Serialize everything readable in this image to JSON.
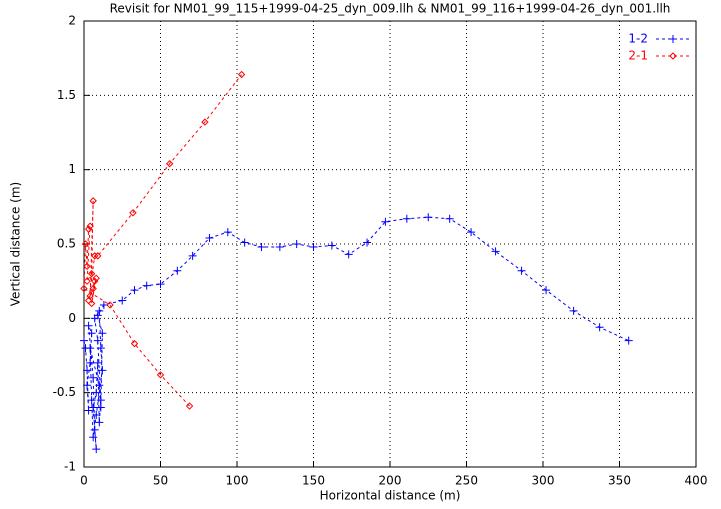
{
  "chart_data": {
    "type": "line",
    "title": "Revisit for NM01_99_115+1999-04-25_dyn_009.llh & NM01_99_116+1999-04-26_dyn_001.llh",
    "x_label": "Horizontal distance (m)",
    "y_label": "Vertical distance (m)",
    "xlim": [
      0,
      400
    ],
    "xticks": [
      0,
      50,
      100,
      150,
      200,
      250,
      300,
      350,
      400
    ],
    "ylim": [
      -1,
      2
    ],
    "yticks": [
      -1,
      -0.5,
      0,
      0.5,
      1,
      1.5,
      2
    ],
    "grid": true,
    "legend": "top-right",
    "series": [
      {
        "name": "1-2",
        "color": "#0000ff",
        "x": [
          0,
          1,
          2,
          3,
          2,
          4,
          5,
          3,
          6,
          7,
          8,
          6,
          8,
          9,
          10,
          11,
          9,
          7,
          10,
          11,
          12,
          8,
          6,
          5,
          4,
          10,
          11,
          12,
          9,
          13,
          25,
          33,
          41,
          50,
          61,
          71,
          82,
          94,
          105,
          116,
          128,
          139,
          150,
          162,
          173,
          185,
          197,
          211,
          225,
          239,
          253,
          269,
          286,
          302,
          320,
          337,
          356
        ],
        "values": [
          -0.15,
          -0.2,
          -0.35,
          -0.62,
          -0.45,
          -0.3,
          -0.1,
          -0.05,
          -0.4,
          -0.75,
          -0.88,
          -0.6,
          -0.5,
          -0.3,
          -0.7,
          -0.55,
          -0.15,
          0,
          0.05,
          -0.2,
          -0.35,
          -0.65,
          -0.8,
          -0.55,
          -0.2,
          -0.45,
          -0.6,
          -0.1,
          0.02,
          0.09,
          0.12,
          0.19,
          0.22,
          0.23,
          0.32,
          0.42,
          0.54,
          0.58,
          0.51,
          0.48,
          0.48,
          0.5,
          0.48,
          0.49,
          0.43,
          0.51,
          0.65,
          0.67,
          0.68,
          0.67,
          0.58,
          0.45,
          0.32,
          0.19,
          0.05,
          -0.06,
          -0.15
        ]
      },
      {
        "name": "2-1",
        "color": "#ff0000",
        "x": [
          69,
          50,
          33,
          17,
          0,
          1,
          2,
          3,
          4,
          2,
          5,
          6,
          4,
          7,
          5,
          8,
          6,
          3,
          7,
          9,
          32,
          56,
          79,
          103
        ],
        "values": [
          -0.59,
          -0.38,
          -0.17,
          0.09,
          0.2,
          0.5,
          0.35,
          0.6,
          0.62,
          0.25,
          0.3,
          0.79,
          0.15,
          0.25,
          0.1,
          0.27,
          0.2,
          0.12,
          0.42,
          0.42,
          0.71,
          1.04,
          1.32,
          1.64
        ]
      }
    ]
  }
}
